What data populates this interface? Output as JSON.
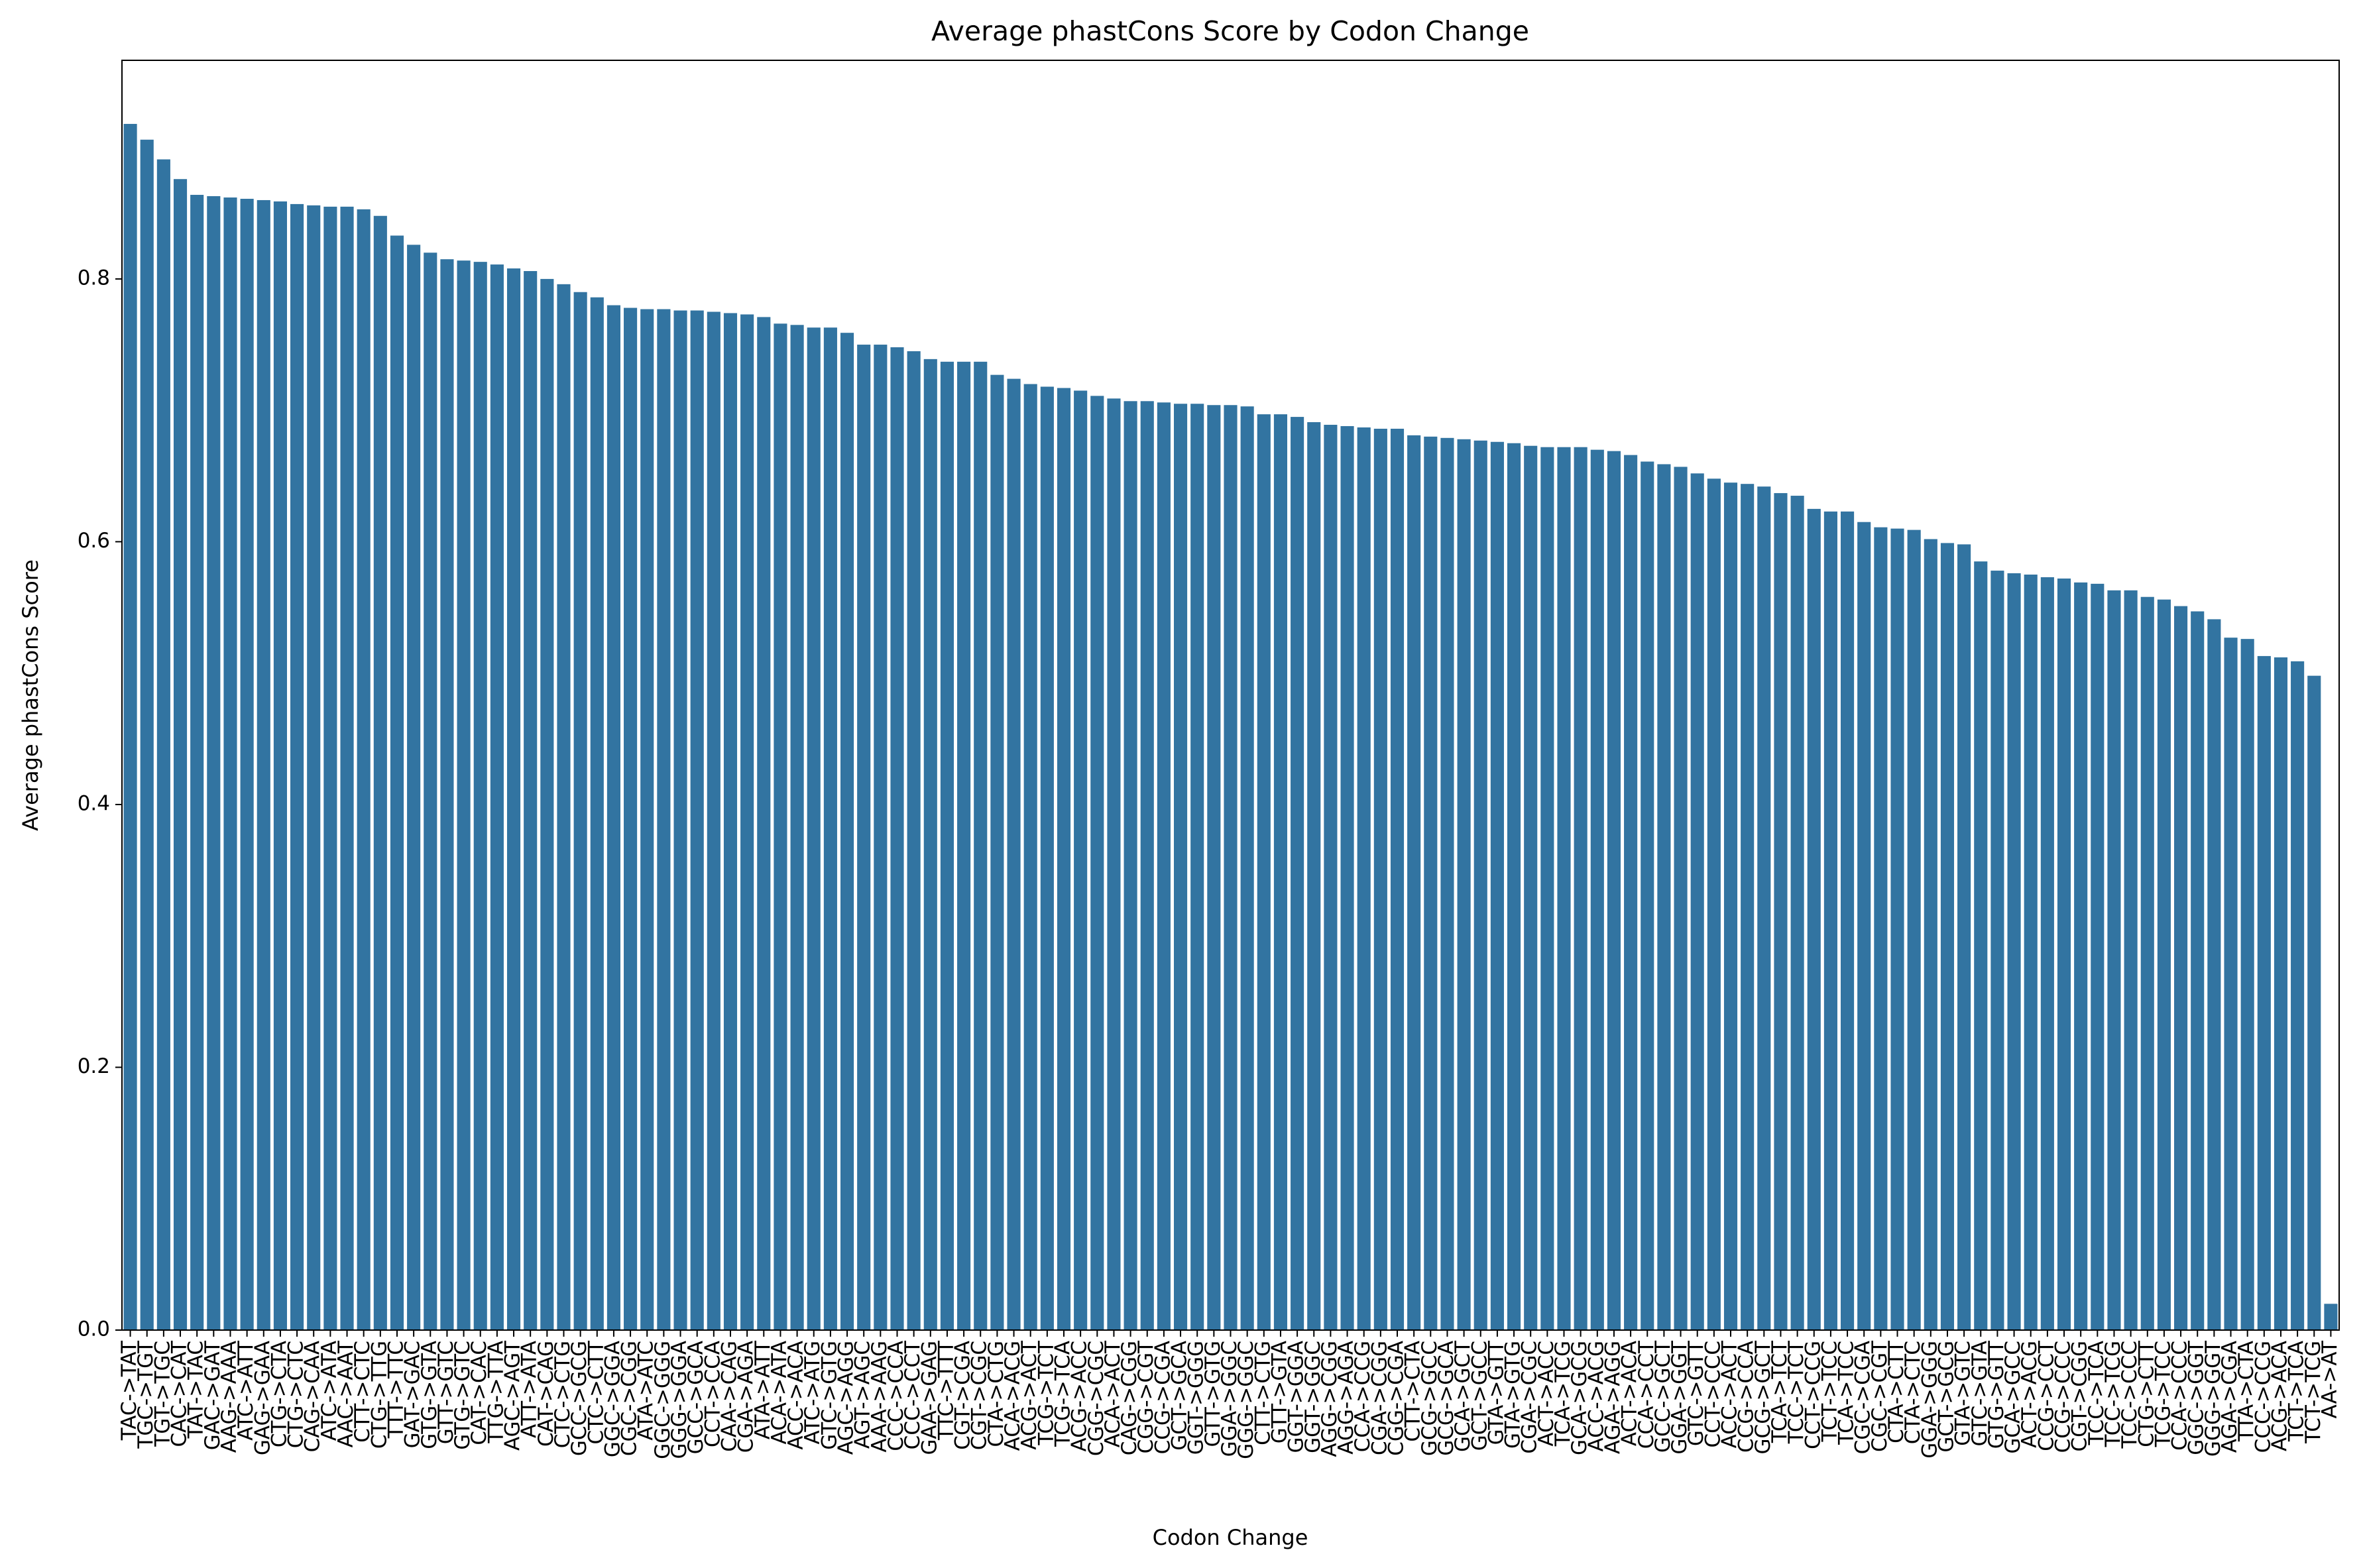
{
  "chart_data": {
    "type": "bar",
    "title": "Average phastCons Score by Codon Change",
    "xlabel": "Codon Change",
    "ylabel": "Average phastCons Score",
    "color": "#3274a1",
    "ylim": [
      0,
      0.9664
    ],
    "yticks": [
      {
        "value": 0,
        "label": "0.0"
      },
      0.2,
      0.4,
      0.6,
      0.8
    ],
    "categories": [
      "TAC->TAT",
      "TGC->TGT",
      "TGT->TGC",
      "CAC->CAT",
      "TAT->TAC",
      "GAC->GAT",
      "AAG->AAA",
      "ATC->ATT",
      "GAG->GAA",
      "CTG->CTA",
      "CTG->CTC",
      "CAG->CAA",
      "ATC->ATA",
      "AAC->AAT",
      "CTT->CTC",
      "CTG->TTG",
      "TTT->TTC",
      "GAT->GAC",
      "GTG->GTA",
      "GTT->GTC",
      "GTG->GTC",
      "CAT->CAC",
      "TTG->TTA",
      "AGC->AGT",
      "ATT->ATA",
      "CAT->CAG",
      "CTC->CTG",
      "GCC->GCG",
      "CTC->CTT",
      "GGC->GGA",
      "CGC->CGG",
      "ATA->ATC",
      "GGC->GGG",
      "GGG->GGA",
      "GCC->GCA",
      "CCT->CCA",
      "CAA->CAG",
      "CGA->AGA",
      "ATA->ATT",
      "ACA->ATA",
      "ACC->ACA",
      "ATC->ATG",
      "GTC->GTG",
      "AGC->AGG",
      "AGT->AGC",
      "AAA->AAG",
      "CCC->CCA",
      "CCC->CCT",
      "GAA->GAG",
      "TTC->TTT",
      "CGT->CGA",
      "CGT->CGC",
      "CTA->CTG",
      "ACA->ACG",
      "ACG->ACT",
      "TCG->TCT",
      "TCG->TCA",
      "ACG->ACC",
      "CGG->CGC",
      "ACA->ACT",
      "CAG->CGG",
      "CGG->CGT",
      "CCG->CGA",
      "GCT->GCA",
      "GGT->GGG",
      "GTT->GTG",
      "GGA->GGC",
      "GGG->GGC",
      "CTT->CTG",
      "GTT->GTA",
      "GGT->GGA",
      "GGT->GGC",
      "AGG->CGG",
      "AGG->AGA",
      "CCA->CCG",
      "CGA->CGG",
      "CGG->CGA",
      "CTT->CTA",
      "GCG->GCC",
      "GCG->GCA",
      "GCA->GCT",
      "GCT->GCC",
      "GTA->GTT",
      "GTA->GTG",
      "CGA->CGC",
      "ACT->ACC",
      "TCA->TCG",
      "GCA->GCG",
      "ACC->ACG",
      "AGA->AGG",
      "ACT->ACA",
      "CCA->CCT",
      "GCC->GCT",
      "GGA->GGT",
      "GTC->GTT",
      "CCT->CCC",
      "ACC->ACT",
      "CCG->CCA",
      "GCG->GCT",
      "TCA->TCT",
      "TCC->TCT",
      "CCT->CCG",
      "TCT->TCC",
      "TCA->TCC",
      "CGC->CGA",
      "CGC->CGT",
      "CTA->CTT",
      "CTA->CTC",
      "GGA->GGG",
      "GCT->GCG",
      "GTA->GTC",
      "GTC->GTA",
      "GTG->GTT",
      "GCA->GCC",
      "ACT->ACG",
      "CCG->CCT",
      "CCG->CCC",
      "CGT->CGG",
      "TCC->TCA",
      "TCC->TCG",
      "TCC->CCC",
      "CTG->CTT",
      "TCG->TCC",
      "CCA->CCC",
      "GGC->GGT",
      "GGG->GGT",
      "AGA->CGA",
      "TTA->CTA",
      "CCC->CCG",
      "ACG->ACA",
      "TCT->TCA",
      "TCT->TCG",
      "AA->AT"
    ],
    "values": [
      0.918,
      0.906,
      0.891,
      0.876,
      0.864,
      0.863,
      0.862,
      0.861,
      0.86,
      0.859,
      0.857,
      0.856,
      0.855,
      0.855,
      0.853,
      0.848,
      0.833,
      0.826,
      0.82,
      0.815,
      0.814,
      0.813,
      0.811,
      0.808,
      0.806,
      0.8,
      0.796,
      0.79,
      0.786,
      0.78,
      0.778,
      0.777,
      0.777,
      0.776,
      0.776,
      0.775,
      0.774,
      0.773,
      0.771,
      0.766,
      0.765,
      0.763,
      0.763,
      0.759,
      0.75,
      0.75,
      0.748,
      0.745,
      0.739,
      0.737,
      0.737,
      0.737,
      0.727,
      0.724,
      0.72,
      0.718,
      0.717,
      0.715,
      0.711,
      0.709,
      0.707,
      0.707,
      0.706,
      0.705,
      0.705,
      0.704,
      0.704,
      0.703,
      0.697,
      0.697,
      0.695,
      0.691,
      0.689,
      0.688,
      0.687,
      0.686,
      0.686,
      0.681,
      0.68,
      0.679,
      0.678,
      0.677,
      0.676,
      0.675,
      0.673,
      0.672,
      0.672,
      0.672,
      0.67,
      0.669,
      0.666,
      0.661,
      0.659,
      0.657,
      0.652,
      0.648,
      0.645,
      0.644,
      0.642,
      0.637,
      0.635,
      0.625,
      0.623,
      0.623,
      0.615,
      0.611,
      0.61,
      0.609,
      0.602,
      0.599,
      0.598,
      0.585,
      0.578,
      0.576,
      0.575,
      0.573,
      0.572,
      0.569,
      0.568,
      0.563,
      0.563,
      0.558,
      0.556,
      0.551,
      0.547,
      0.541,
      0.527,
      0.526,
      0.513,
      0.512,
      0.509,
      0.498,
      0.02
    ]
  }
}
